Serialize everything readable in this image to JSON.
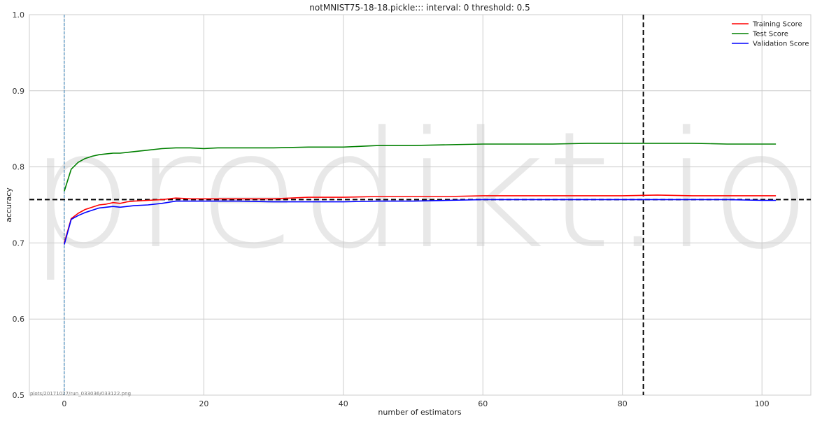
{
  "chart_data": {
    "type": "line",
    "title": "notMNIST75-18-18.pickle::: interval: 0 threshold: 0.5",
    "xlabel": "number of estimators",
    "ylabel": "accuracy",
    "xlim": [
      -5,
      107
    ],
    "ylim": [
      0.5,
      1.0
    ],
    "x_ticks": [
      0,
      20,
      40,
      60,
      80,
      100
    ],
    "y_ticks": [
      0.5,
      0.6,
      0.7,
      0.8,
      0.9,
      1.0
    ],
    "grid": true,
    "legend_position": "top-right",
    "watermark": "predikt.io",
    "footnote": "plots/20171027/run_033036/033122.png",
    "reference_lines": {
      "vertical_dashed_thin": 0,
      "vertical_dashed_thick": 83,
      "horizontal_dashed_thick": 0.757
    },
    "series": [
      {
        "name": "Training Score",
        "color": "#ff0000",
        "points": [
          [
            0,
            0.7
          ],
          [
            1,
            0.732
          ],
          [
            2,
            0.739
          ],
          [
            3,
            0.744
          ],
          [
            4,
            0.747
          ],
          [
            5,
            0.75
          ],
          [
            6,
            0.751
          ],
          [
            7,
            0.753
          ],
          [
            8,
            0.752
          ],
          [
            9,
            0.754
          ],
          [
            10,
            0.755
          ],
          [
            12,
            0.756
          ],
          [
            14,
            0.757
          ],
          [
            16,
            0.759
          ],
          [
            18,
            0.758
          ],
          [
            20,
            0.758
          ],
          [
            25,
            0.758
          ],
          [
            30,
            0.758
          ],
          [
            35,
            0.76
          ],
          [
            40,
            0.76
          ],
          [
            45,
            0.761
          ],
          [
            50,
            0.761
          ],
          [
            55,
            0.761
          ],
          [
            60,
            0.762
          ],
          [
            65,
            0.762
          ],
          [
            70,
            0.762
          ],
          [
            75,
            0.762
          ],
          [
            80,
            0.762
          ],
          [
            85,
            0.763
          ],
          [
            90,
            0.762
          ],
          [
            95,
            0.762
          ],
          [
            100,
            0.762
          ],
          [
            102,
            0.762
          ]
        ]
      },
      {
        "name": "Test Score",
        "color": "#008000",
        "points": [
          [
            0,
            0.768
          ],
          [
            1,
            0.797
          ],
          [
            2,
            0.806
          ],
          [
            3,
            0.811
          ],
          [
            4,
            0.814
          ],
          [
            5,
            0.816
          ],
          [
            6,
            0.817
          ],
          [
            7,
            0.818
          ],
          [
            8,
            0.818
          ],
          [
            9,
            0.819
          ],
          [
            10,
            0.82
          ],
          [
            12,
            0.822
          ],
          [
            14,
            0.824
          ],
          [
            16,
            0.825
          ],
          [
            18,
            0.825
          ],
          [
            20,
            0.824
          ],
          [
            22,
            0.825
          ],
          [
            25,
            0.825
          ],
          [
            30,
            0.825
          ],
          [
            35,
            0.826
          ],
          [
            40,
            0.826
          ],
          [
            45,
            0.828
          ],
          [
            50,
            0.828
          ],
          [
            55,
            0.829
          ],
          [
            60,
            0.83
          ],
          [
            65,
            0.83
          ],
          [
            70,
            0.83
          ],
          [
            75,
            0.831
          ],
          [
            80,
            0.831
          ],
          [
            85,
            0.831
          ],
          [
            90,
            0.831
          ],
          [
            95,
            0.83
          ],
          [
            100,
            0.83
          ],
          [
            102,
            0.83
          ]
        ]
      },
      {
        "name": "Validation Score",
        "color": "#0000ff",
        "points": [
          [
            0,
            0.698
          ],
          [
            1,
            0.731
          ],
          [
            2,
            0.736
          ],
          [
            3,
            0.74
          ],
          [
            4,
            0.743
          ],
          [
            5,
            0.746
          ],
          [
            6,
            0.747
          ],
          [
            7,
            0.748
          ],
          [
            8,
            0.747
          ],
          [
            9,
            0.748
          ],
          [
            10,
            0.749
          ],
          [
            12,
            0.75
          ],
          [
            14,
            0.752
          ],
          [
            16,
            0.755
          ],
          [
            18,
            0.755
          ],
          [
            20,
            0.755
          ],
          [
            25,
            0.755
          ],
          [
            30,
            0.754
          ],
          [
            35,
            0.754
          ],
          [
            40,
            0.754
          ],
          [
            45,
            0.755
          ],
          [
            50,
            0.755
          ],
          [
            55,
            0.756
          ],
          [
            60,
            0.757
          ],
          [
            65,
            0.757
          ],
          [
            70,
            0.757
          ],
          [
            75,
            0.757
          ],
          [
            80,
            0.757
          ],
          [
            85,
            0.757
          ],
          [
            90,
            0.757
          ],
          [
            95,
            0.757
          ],
          [
            100,
            0.756
          ],
          [
            102,
            0.756
          ]
        ]
      }
    ]
  }
}
